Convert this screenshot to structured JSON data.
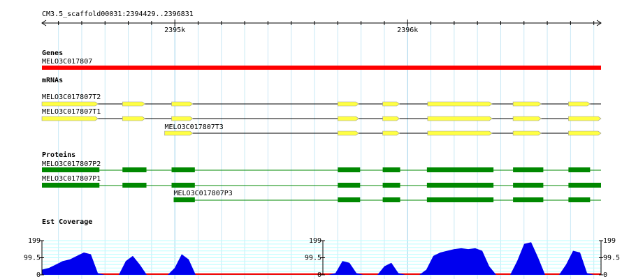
{
  "location": "CM3.5_scaffold00031:2394429..2396831",
  "xlim": [
    2394429,
    2396831
  ],
  "xticks": [
    {
      "value": 2395000,
      "label": "2395k"
    },
    {
      "value": 2396000,
      "label": "2396k"
    }
  ],
  "xticks_minor": [
    2394500,
    2394600,
    2394700,
    2394800,
    2394900,
    2395100,
    2395200,
    2395300,
    2395400,
    2395500,
    2395600,
    2395700,
    2395800,
    2395900,
    2396100,
    2396200,
    2396300,
    2396400,
    2396500,
    2396600,
    2396700,
    2396800
  ],
  "genes": {
    "title": "Genes",
    "items": [
      {
        "name": "MELO3C017807",
        "color": "#ff0000",
        "start": 2394429,
        "end": 2396831
      }
    ]
  },
  "mrnas": {
    "title": "mRNAs",
    "color": "#ffff44",
    "items": [
      {
        "name": "MELO3C017807T2",
        "start": 2394429,
        "end": 2396831,
        "exons": [
          [
            2394429,
            2394670
          ],
          [
            2394775,
            2394872
          ],
          [
            2394986,
            2395077
          ],
          [
            2395700,
            2395790
          ],
          [
            2395893,
            2395965
          ],
          [
            2396086,
            2396363
          ],
          [
            2396453,
            2396574
          ],
          [
            2396691,
            2396784
          ]
        ]
      },
      {
        "name": "MELO3C017807T1",
        "start": 2394429,
        "end": 2396831,
        "exons": [
          [
            2394429,
            2394670
          ],
          [
            2394775,
            2394872
          ],
          [
            2394986,
            2395077
          ],
          [
            2395700,
            2395790
          ],
          [
            2395893,
            2395965
          ],
          [
            2396086,
            2396363
          ],
          [
            2396453,
            2396574
          ],
          [
            2396691,
            2396831
          ]
        ]
      },
      {
        "name": "MELO3C017807T3",
        "start": 2394956,
        "end": 2396831,
        "exons": [
          [
            2394956,
            2395077
          ],
          [
            2395700,
            2395790
          ],
          [
            2395893,
            2395965
          ],
          [
            2396086,
            2396363
          ],
          [
            2396453,
            2396574
          ],
          [
            2396691,
            2396831
          ]
        ]
      }
    ]
  },
  "proteins": {
    "title": "Proteins",
    "color": "#008800",
    "items": [
      {
        "name": "MELO3C017807P2",
        "start": 2394429,
        "end": 2396831,
        "exons": [
          [
            2394429,
            2394676
          ],
          [
            2394775,
            2394878
          ],
          [
            2394986,
            2395086
          ],
          [
            2395700,
            2395796
          ],
          [
            2395893,
            2395968
          ],
          [
            2396083,
            2396369
          ],
          [
            2396453,
            2396583
          ],
          [
            2396691,
            2396784
          ]
        ]
      },
      {
        "name": "MELO3C017807P1",
        "start": 2394429,
        "end": 2396831,
        "exons": [
          [
            2394429,
            2394676
          ],
          [
            2394775,
            2394878
          ],
          [
            2394986,
            2395086
          ],
          [
            2395700,
            2395796
          ],
          [
            2395893,
            2395968
          ],
          [
            2396083,
            2396369
          ],
          [
            2396453,
            2396583
          ],
          [
            2396691,
            2396831
          ]
        ]
      },
      {
        "name": "MELO3C017807P3",
        "start": 2394995,
        "end": 2396831,
        "exons": [
          [
            2394995,
            2395086
          ],
          [
            2395700,
            2395796
          ],
          [
            2395893,
            2395968
          ],
          [
            2396083,
            2396369
          ],
          [
            2396453,
            2396583
          ],
          [
            2396691,
            2396784
          ]
        ]
      }
    ]
  },
  "coverage": {
    "title": "Est Coverage",
    "color": "#0000ee",
    "ylim": [
      0,
      199
    ],
    "yticks": [
      0,
      {
        "value": 99.5,
        "label": "99.5"
      },
      199
    ],
    "values": [
      30,
      40,
      60,
      80,
      90,
      110,
      130,
      120,
      10,
      0,
      0,
      0,
      80,
      110,
      60,
      0,
      0,
      0,
      0,
      40,
      120,
      90,
      0,
      0,
      0,
      0,
      0,
      0,
      0,
      0,
      0,
      0,
      0,
      0,
      0,
      0,
      0,
      0,
      0,
      0,
      0,
      0,
      10,
      80,
      70,
      10,
      0,
      0,
      0,
      50,
      70,
      10,
      0,
      0,
      0,
      30,
      110,
      130,
      140,
      150,
      155,
      150,
      155,
      140,
      50,
      0,
      0,
      0,
      80,
      180,
      190,
      100,
      0,
      0,
      0,
      60,
      140,
      130,
      10,
      0,
      0
    ]
  }
}
